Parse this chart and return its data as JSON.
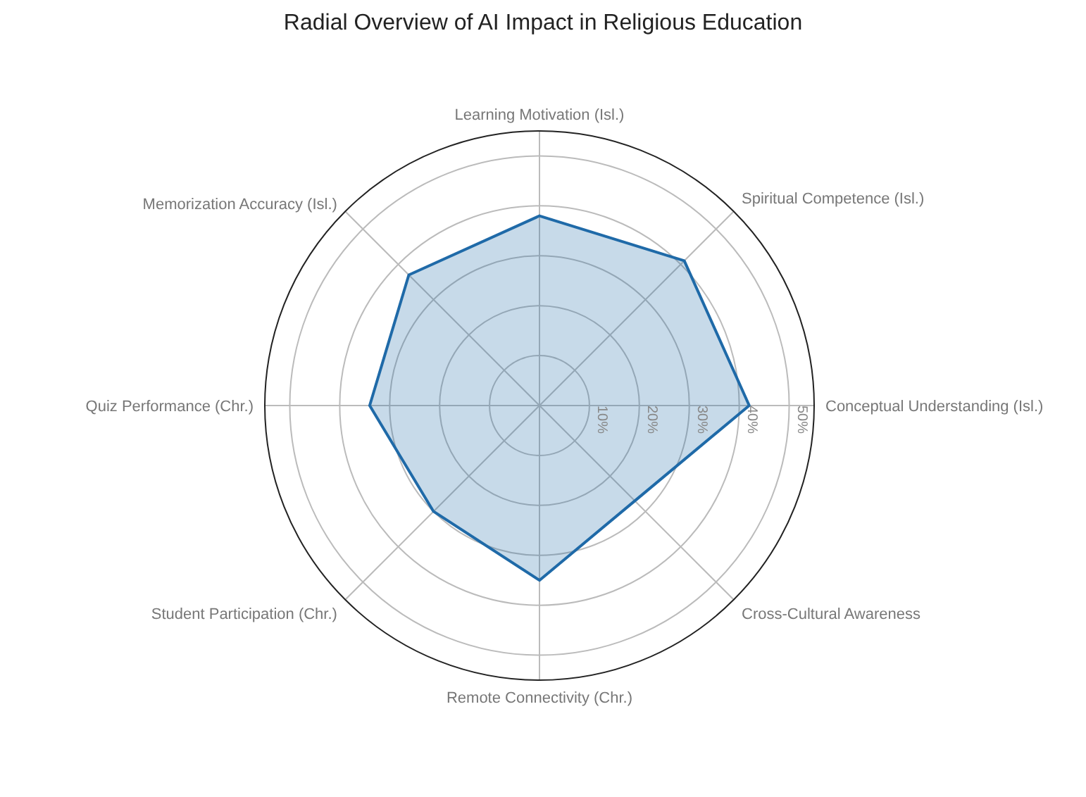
{
  "chart_data": {
    "type": "radar",
    "title": "Radial Overview of AI Impact in Religious Education",
    "categories": [
      "Learning Motivation (Isl.)",
      "Spiritual Competence (Isl.)",
      "Conceptual Understanding (Isl.)",
      "Cross-Cultural Awareness",
      "Remote Connectivity (Chr.)",
      "Student Participation (Chr.)",
      "Quiz Performance (Chr.)",
      "Memorization Accuracy (Isl.)"
    ],
    "series": [
      {
        "color": "#1f6aa8",
        "values": [
          38,
          41,
          42,
          27,
          35,
          30,
          34,
          37
        ]
      }
    ],
    "ylim": [
      0,
      55
    ],
    "yticks": [
      {
        "value": 10,
        "label": "10%"
      },
      {
        "value": 20,
        "label": "20%"
      },
      {
        "value": 30,
        "label": "30%"
      },
      {
        "value": 40,
        "label": "40%"
      },
      {
        "value": 50,
        "label": "50%"
      }
    ],
    "grid": true
  }
}
